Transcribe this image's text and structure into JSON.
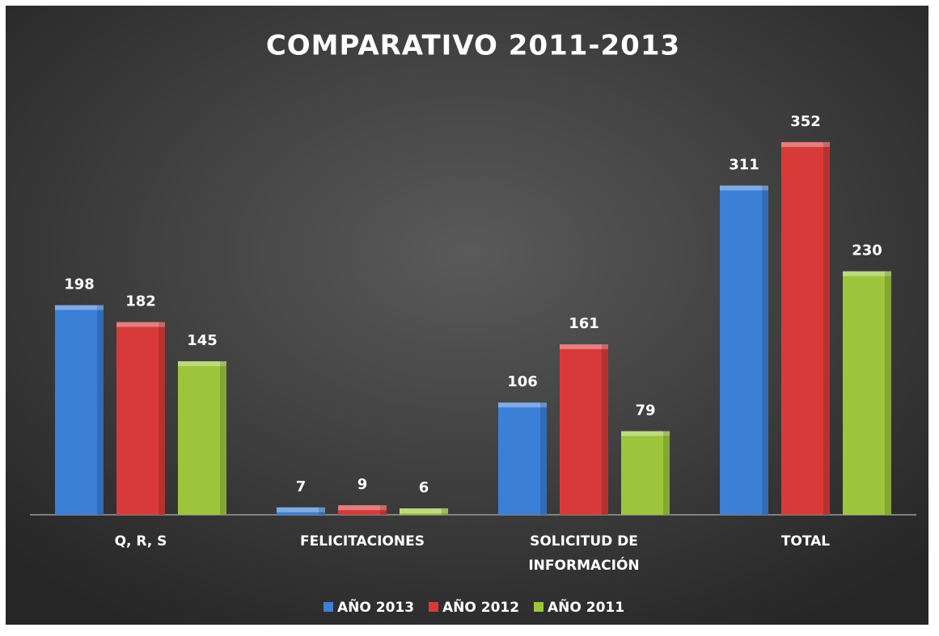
{
  "chart_data": {
    "type": "bar",
    "title": "COMPARATIVO 2011-2013",
    "categories": [
      "Q, R, S",
      "FELICITACIONES",
      "SOLICITUD DE INFORMACIÓN",
      "TOTAL"
    ],
    "series": [
      {
        "name": "AÑO 2013",
        "color": "#3b7fd6",
        "values": [
          198,
          7,
          106,
          311
        ]
      },
      {
        "name": "AÑO 2012",
        "color": "#d83a3a",
        "values": [
          182,
          9,
          161,
          352
        ]
      },
      {
        "name": "AÑO 2011",
        "color": "#9cc53b",
        "values": [
          145,
          6,
          79,
          230
        ]
      }
    ],
    "legend": "bottom"
  }
}
